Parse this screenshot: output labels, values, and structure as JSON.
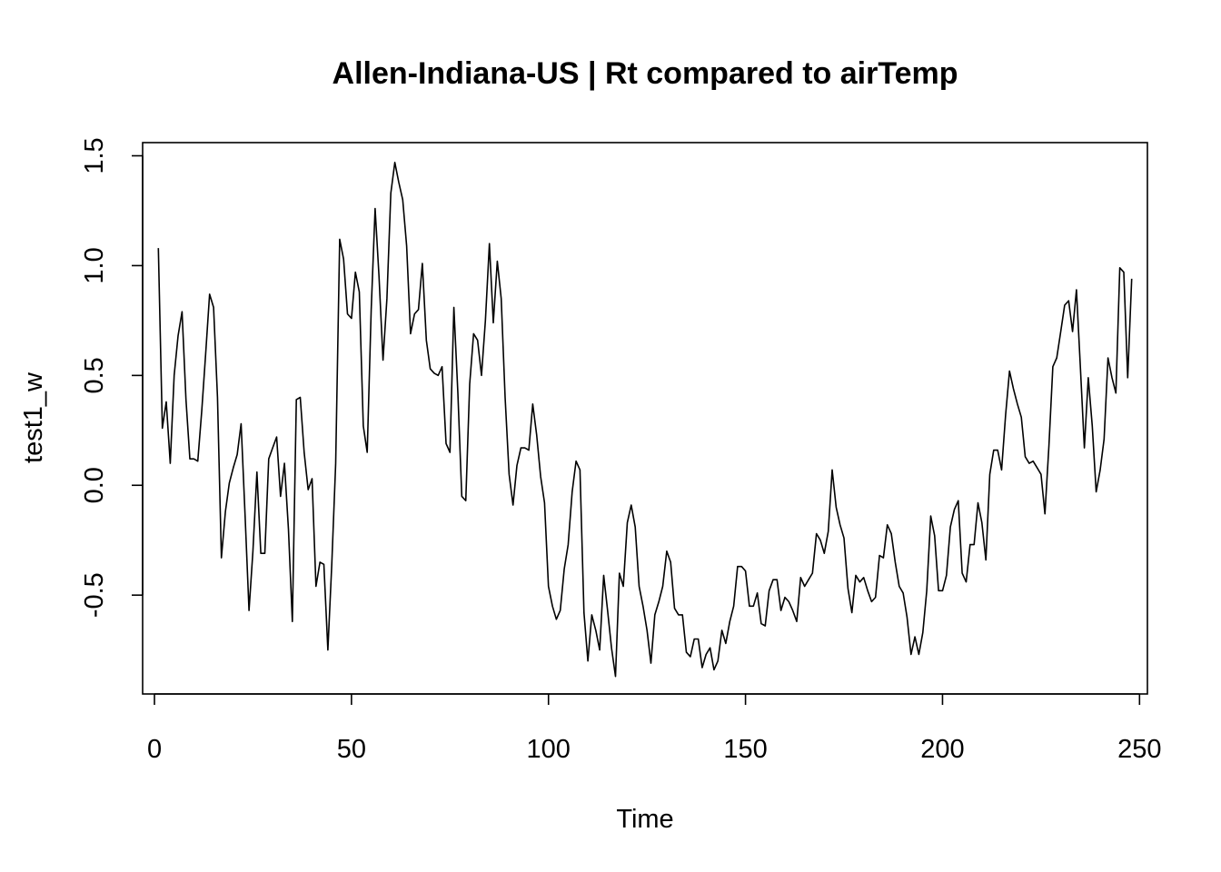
{
  "chart_data": {
    "type": "line",
    "title": "Allen-Indiana-US | Rt compared to airTemp",
    "xlabel": "Time",
    "ylabel": "test1_w",
    "xlim": [
      -3,
      252
    ],
    "ylim": [
      -0.95,
      1.56
    ],
    "x_ticks": [
      0,
      50,
      100,
      150,
      200,
      250
    ],
    "y_ticks": [
      -0.5,
      0.0,
      0.5,
      1.0,
      1.5
    ],
    "x_tick_labels": [
      "0",
      "50",
      "100",
      "150",
      "200",
      "250"
    ],
    "y_tick_labels": [
      "-0.5",
      "0.0",
      "0.5",
      "1.0",
      "1.5"
    ],
    "grid": false,
    "legend": "none",
    "line_color": "#000000",
    "series": [
      {
        "x": [
          1,
          2,
          3,
          4,
          5,
          6,
          7,
          8,
          9,
          10,
          11,
          12,
          13,
          14,
          15,
          16,
          17,
          18,
          19,
          20,
          21,
          22,
          23,
          24,
          25,
          26,
          27,
          28,
          29,
          30,
          31,
          32,
          33,
          34,
          35,
          36,
          37,
          38,
          39,
          40,
          41,
          42,
          43,
          44,
          45,
          46,
          47,
          48,
          49,
          50,
          51,
          52,
          53,
          54,
          55,
          56,
          57,
          58,
          59,
          60,
          61,
          62,
          63,
          64,
          65,
          66,
          67,
          68,
          69,
          70,
          71,
          72,
          73,
          74,
          75,
          76,
          77,
          78,
          79,
          80,
          81,
          82,
          83,
          84,
          85,
          86,
          87,
          88,
          89,
          90,
          91,
          92,
          93,
          94,
          95,
          96,
          97,
          98,
          99,
          100,
          101,
          102,
          103,
          104,
          105,
          106,
          107,
          108,
          109,
          110,
          111,
          112,
          113,
          114,
          115,
          116,
          117,
          118,
          119,
          120,
          121,
          122,
          123,
          124,
          125,
          126,
          127,
          128,
          129,
          130,
          131,
          132,
          133,
          134,
          135,
          136,
          137,
          138,
          139,
          140,
          141,
          142,
          143,
          144,
          145,
          146,
          147,
          148,
          149,
          150,
          151,
          152,
          153,
          154,
          155,
          156,
          157,
          158,
          159,
          160,
          161,
          162,
          163,
          164,
          165,
          166,
          167,
          168,
          169,
          170,
          171,
          172,
          173,
          174,
          175,
          176,
          177,
          178,
          179,
          180,
          181,
          182,
          183,
          184,
          185,
          186,
          187,
          188,
          189,
          190,
          191,
          192,
          193,
          194,
          195,
          196,
          197,
          198,
          199,
          200,
          201,
          202,
          203,
          204,
          205,
          206,
          207,
          208,
          209,
          210,
          211,
          212,
          213,
          214,
          215,
          216,
          217,
          218,
          219,
          220,
          221,
          222,
          223,
          224,
          225,
          226,
          227,
          228,
          229,
          230,
          231,
          232,
          233,
          234,
          235,
          236,
          237,
          238,
          239,
          240,
          241,
          242,
          243,
          244,
          245,
          246,
          247,
          248
        ],
        "values": [
          1.08,
          0.26,
          0.38,
          0.1,
          0.5,
          0.68,
          0.79,
          0.39,
          0.12,
          0.12,
          0.11,
          0.34,
          0.6,
          0.87,
          0.81,
          0.4,
          -0.33,
          -0.12,
          0.01,
          0.08,
          0.14,
          0.28,
          -0.14,
          -0.57,
          -0.3,
          0.06,
          -0.31,
          -0.31,
          0.12,
          0.17,
          0.22,
          -0.05,
          0.1,
          -0.2,
          -0.62,
          0.39,
          0.4,
          0.15,
          -0.02,
          0.03,
          -0.46,
          -0.35,
          -0.36,
          -0.75,
          -0.36,
          0.1,
          1.12,
          1.03,
          0.78,
          0.76,
          0.97,
          0.88,
          0.27,
          0.15,
          0.8,
          1.26,
          0.95,
          0.57,
          0.85,
          1.33,
          1.47,
          1.38,
          1.3,
          1.09,
          0.69,
          0.78,
          0.8,
          1.01,
          0.66,
          0.53,
          0.51,
          0.5,
          0.54,
          0.19,
          0.15,
          0.81,
          0.42,
          -0.05,
          -0.07,
          0.46,
          0.69,
          0.66,
          0.5,
          0.75,
          1.1,
          0.74,
          1.02,
          0.85,
          0.4,
          0.05,
          -0.09,
          0.09,
          0.17,
          0.17,
          0.16,
          0.37,
          0.23,
          0.04,
          -0.08,
          -0.46,
          -0.55,
          -0.61,
          -0.57,
          -0.38,
          -0.27,
          -0.03,
          0.11,
          0.07,
          -0.58,
          -0.8,
          -0.59,
          -0.66,
          -0.75,
          -0.41,
          -0.57,
          -0.74,
          -0.87,
          -0.4,
          -0.46,
          -0.17,
          -0.09,
          -0.19,
          -0.46,
          -0.55,
          -0.66,
          -0.81,
          -0.59,
          -0.53,
          -0.46,
          -0.3,
          -0.35,
          -0.56,
          -0.59,
          -0.59,
          -0.76,
          -0.78,
          -0.7,
          -0.7,
          -0.83,
          -0.77,
          -0.74,
          -0.84,
          -0.8,
          -0.66,
          -0.72,
          -0.62,
          -0.55,
          -0.37,
          -0.37,
          -0.39,
          -0.55,
          -0.55,
          -0.49,
          -0.63,
          -0.64,
          -0.48,
          -0.43,
          -0.43,
          -0.57,
          -0.51,
          -0.53,
          -0.57,
          -0.62,
          -0.42,
          -0.46,
          -0.43,
          -0.4,
          -0.22,
          -0.25,
          -0.31,
          -0.21,
          0.07,
          -0.1,
          -0.18,
          -0.24,
          -0.47,
          -0.58,
          -0.41,
          -0.44,
          -0.42,
          -0.48,
          -0.53,
          -0.51,
          -0.32,
          -0.33,
          -0.18,
          -0.22,
          -0.35,
          -0.46,
          -0.49,
          -0.6,
          -0.77,
          -0.69,
          -0.77,
          -0.67,
          -0.48,
          -0.14,
          -0.23,
          -0.48,
          -0.48,
          -0.41,
          -0.19,
          -0.11,
          -0.07,
          -0.4,
          -0.44,
          -0.27,
          -0.27,
          -0.08,
          -0.17,
          -0.34,
          0.05,
          0.16,
          0.16,
          0.07,
          0.32,
          0.52,
          0.44,
          0.37,
          0.31,
          0.13,
          0.1,
          0.11,
          0.08,
          0.05,
          -0.13,
          0.18,
          0.54,
          0.58,
          0.7,
          0.82,
          0.84,
          0.7,
          0.89,
          0.53,
          0.17,
          0.49,
          0.27,
          -0.03,
          0.07,
          0.21,
          0.58,
          0.49,
          0.42,
          0.99,
          0.97,
          0.49,
          0.94
        ]
      }
    ]
  }
}
